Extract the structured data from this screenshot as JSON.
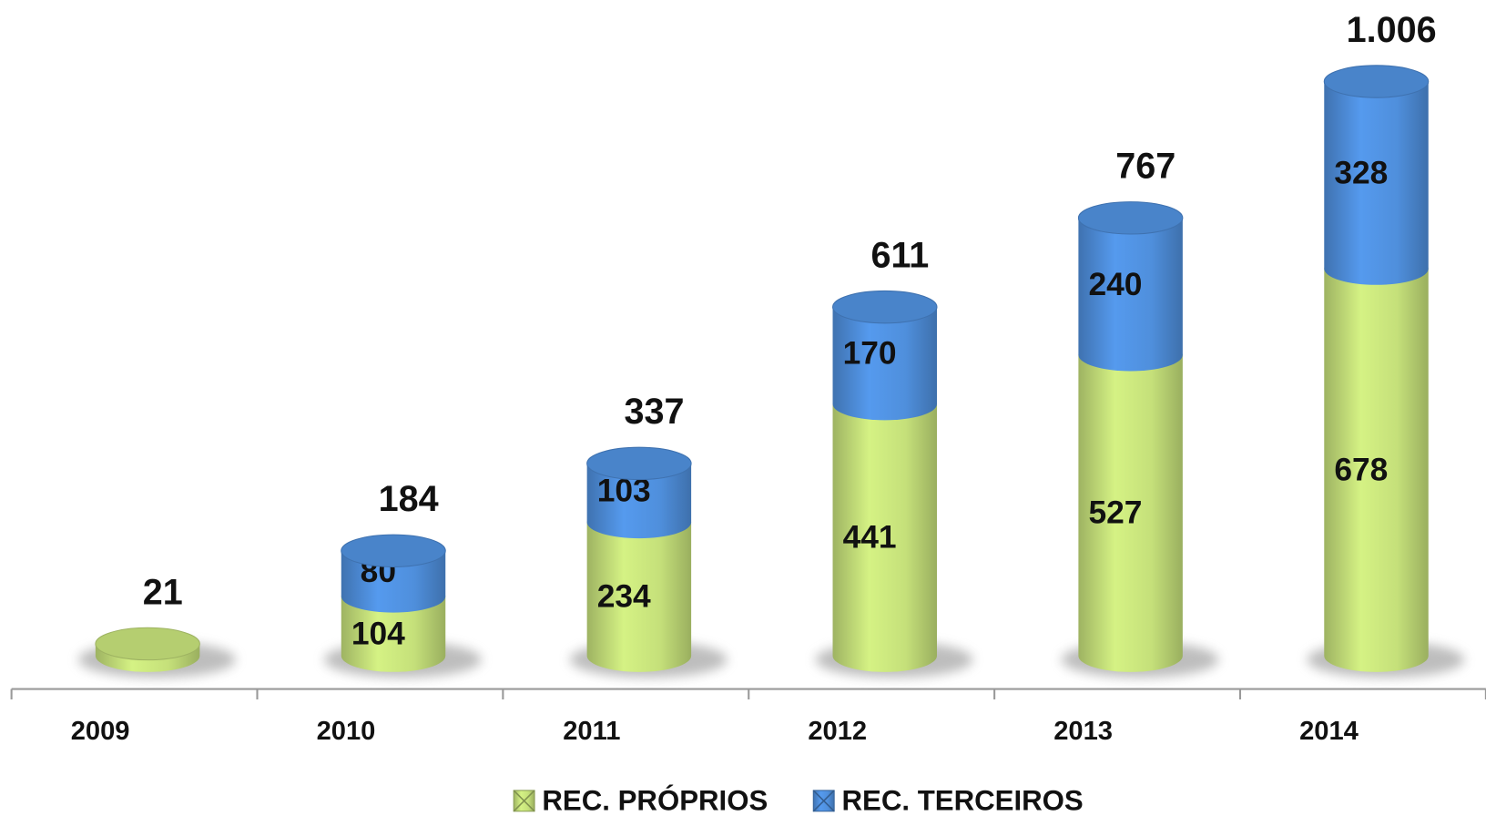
{
  "chart_data": {
    "type": "bar",
    "categories": [
      "2009",
      "2010",
      "2011",
      "2012",
      "2013",
      "2014"
    ],
    "series": [
      {
        "name": "REC. PRÓPRIOS",
        "color": "#c5e07a",
        "values": [
          21,
          104,
          234,
          441,
          527,
          678
        ]
      },
      {
        "name": "REC. TERCEIROS",
        "color": "#4f8fdc",
        "values": [
          null,
          80,
          103,
          170,
          240,
          328
        ]
      }
    ],
    "totals": {
      "values": [
        21,
        184,
        337,
        611,
        767,
        1006
      ],
      "value_labels": [
        "21",
        "184",
        "337",
        "611",
        "767",
        "1.006"
      ]
    },
    "legend": "bottom"
  }
}
